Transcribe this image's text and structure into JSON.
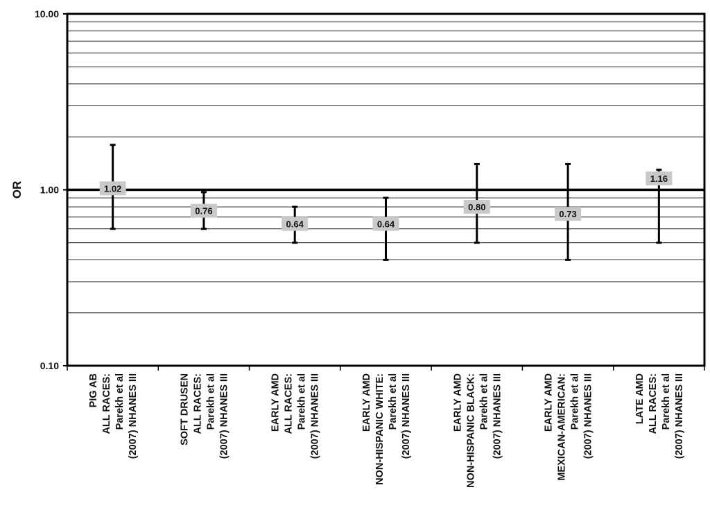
{
  "chart_data": {
    "type": "errorbar",
    "ylabel": "OR",
    "yscale": "log",
    "ylim": [
      0.1,
      10
    ],
    "yticks": [
      "0.10",
      "1.00",
      "10.00"
    ],
    "reference_line": 1.0,
    "grid": true,
    "categories": [
      [
        "PIG AB",
        "ALL RACES:",
        "Parekh et al",
        "(2007) NHANES III"
      ],
      [
        "SOFT DRUSEN",
        "ALL RACES:",
        "Parekh et al",
        "(2007) NHANES III"
      ],
      [
        "EARLY AMD",
        "ALL RACES:",
        "Parekh et al",
        "(2007) NHANES III"
      ],
      [
        "EARLY AMD",
        "NON-HISPANIC WHITE:",
        "Parekh et al",
        "(2007) NHANES III"
      ],
      [
        "EARLY AMD",
        "NON-HISPANIC BLACK:",
        "Parekh et al",
        "(2007) NHANES III"
      ],
      [
        "EARLY AMD",
        "MEXICAN-AMERICAN:",
        "Parekh et al",
        "(2007) NHANES III"
      ],
      [
        "LATE AMD",
        "ALL RACES:",
        "Parekh et al",
        "(2007) NHANES III"
      ]
    ],
    "values": [
      1.02,
      0.76,
      0.64,
      0.64,
      0.8,
      0.73,
      1.16
    ],
    "value_labels": [
      "1.02",
      "0.76",
      "0.64",
      "0.64",
      "0.80",
      "0.73",
      "1.16"
    ],
    "lower": [
      0.6,
      0.6,
      0.5,
      0.4,
      0.5,
      0.4,
      0.5
    ],
    "upper": [
      1.8,
      0.97,
      0.8,
      0.9,
      1.4,
      1.4,
      1.3
    ]
  }
}
